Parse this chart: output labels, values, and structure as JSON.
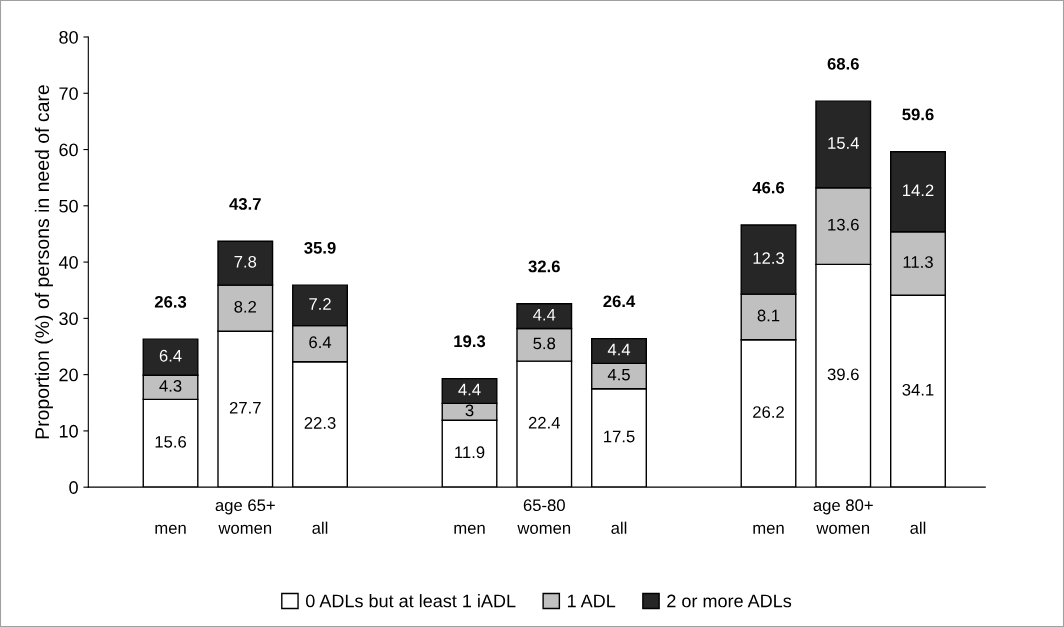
{
  "chart_data": {
    "type": "bar",
    "stacked": true,
    "ylabel": "Proportion (%) of persons in need of care",
    "categories": [
      "men",
      "age 65+\nwomen",
      "all",
      null,
      "men",
      "65-80\nwomen",
      "all",
      null,
      "men",
      "age 80+\nwomen",
      "all"
    ],
    "series": [
      {
        "name": "0 ADLs but at least 1 iADL",
        "color": "#ffffff",
        "values": [
          15.6,
          27.7,
          22.3,
          null,
          11.9,
          22.4,
          17.5,
          null,
          26.2,
          39.6,
          34.1
        ]
      },
      {
        "name": "1 ADL",
        "color": "#c0c0c0",
        "values": [
          4.3,
          8.2,
          6.4,
          null,
          3,
          5.8,
          4.5,
          null,
          8.1,
          13.6,
          11.3
        ]
      },
      {
        "name": "2 or more ADLs",
        "color": "#262626",
        "values": [
          6.4,
          7.8,
          7.2,
          null,
          4.4,
          4.4,
          4.4,
          null,
          12.3,
          15.4,
          14.2
        ]
      }
    ],
    "totals": [
      "26.3",
      "43.7",
      "35.9",
      null,
      "19.3",
      "32.6",
      "26.4",
      null,
      "46.6",
      "68.6",
      "59.6"
    ],
    "data_labels": true,
    "ylim": [
      0,
      80
    ],
    "yticks": [
      0,
      10,
      20,
      30,
      40,
      50,
      60,
      70,
      80
    ],
    "grid": false,
    "legend": "bottom"
  }
}
